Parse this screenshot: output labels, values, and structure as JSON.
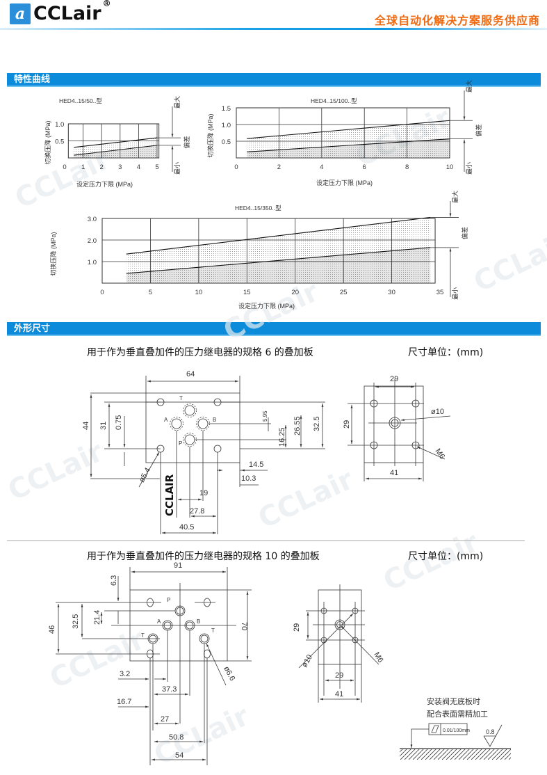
{
  "header": {
    "logo_text": "CCLair",
    "logo_mark": "a",
    "registered": "®",
    "slogan": "全球自动化解决方案服务供应商"
  },
  "watermark": "CCLair",
  "sections": {
    "curves": "特性曲线",
    "dimensions": "外形尺寸"
  },
  "colors": {
    "brand_blue": "#0b8bd9",
    "slogan_orange": "#ef6a10"
  },
  "chart_data": [
    {
      "type": "area",
      "title": "HED4..15/50..型",
      "xlabel": "设定压力下限 (MPa)",
      "ylabel": "切换压降 (MPa)",
      "xlim": [
        0,
        5
      ],
      "ylim": [
        0,
        1.0
      ],
      "box_x": [
        0.2,
        5.1
      ],
      "x_ticks": [
        "0",
        "1",
        "2",
        "3",
        "4",
        "5"
      ],
      "x_tick_values": [
        0,
        1,
        2,
        3,
        4,
        5
      ],
      "y_ticks": [
        "0.5",
        "1.0"
      ],
      "y_tick_values": [
        0.5,
        1.0
      ],
      "grid": true,
      "series": [
        {
          "name": "最大",
          "x": [
            0.5,
            5
          ],
          "y": [
            0.31,
            0.59
          ]
        },
        {
          "name": "最小",
          "x": [
            0.5,
            5
          ],
          "y": [
            0.08,
            0.37
          ]
        }
      ],
      "annotations": {
        "max": "最大",
        "deviation": "偏差",
        "min": "最小"
      }
    },
    {
      "type": "area",
      "title": "HED4..15/100..型",
      "xlabel": "设定压力下限 (MPa)",
      "ylabel": "切换压降 (MPa)",
      "xlim": [
        0,
        10
      ],
      "ylim": [
        0,
        1.5
      ],
      "box_x": [
        0,
        10
      ],
      "x_ticks": [
        "0",
        "2",
        "4",
        "6",
        "8",
        "10"
      ],
      "x_tick_values": [
        0,
        2,
        4,
        6,
        8,
        10
      ],
      "y_ticks": [
        "0.5",
        "1.0",
        "1.5"
      ],
      "y_tick_values": [
        0.5,
        1.0,
        1.5
      ],
      "grid": true,
      "series": [
        {
          "name": "最大",
          "x": [
            0.5,
            10
          ],
          "y": [
            0.58,
            1.12
          ]
        },
        {
          "name": "最小",
          "x": [
            0.5,
            10
          ],
          "y": [
            0.18,
            0.57
          ]
        }
      ],
      "annotations": {
        "max": "最大",
        "deviation": "偏差",
        "min": "最小"
      }
    },
    {
      "type": "area",
      "title": "HED4..15/350..型",
      "xlabel": "设定压力下限 (MPa)",
      "ylabel": "切换压降 (MPa)",
      "xlim": [
        0,
        35
      ],
      "ylim": [
        0,
        3.0
      ],
      "box_x": [
        0,
        34.5
      ],
      "x_ticks": [
        "0",
        "5",
        "10",
        "15",
        "20",
        "25",
        "30",
        "35"
      ],
      "x_tick_values": [
        0,
        5,
        10,
        15,
        20,
        25,
        30,
        35
      ],
      "y_ticks": [
        "1.0",
        "2.0",
        "3.0"
      ],
      "y_tick_values": [
        1.0,
        2.0,
        3.0
      ],
      "grid": true,
      "series": [
        {
          "name": "最大",
          "x": [
            2.5,
            34
          ],
          "y": [
            1.35,
            3.05
          ]
        },
        {
          "name": "最小",
          "x": [
            2.5,
            34
          ],
          "y": [
            0.45,
            1.65
          ]
        }
      ],
      "annotations": {
        "max": "最大",
        "deviation": "偏差",
        "min": "最小"
      }
    }
  ],
  "drawing6": {
    "caption": "用于作为垂直叠加件的压力继电器的规格 6 的叠加板",
    "unit": "尺寸单位：(mm)",
    "ports": {
      "T": "T",
      "A": "A",
      "B": "B",
      "P": "P"
    },
    "brand_mark": "CCLAIR",
    "dims": {
      "width": "64",
      "height": "44",
      "hole_pitch": "31",
      "d075": "0.75",
      "d595": "5.95",
      "d1625": "16.25",
      "d2655": "26.55",
      "d325": "32.5",
      "d145": "14.5",
      "d103": "10.3",
      "d19": "19",
      "d278": "27.8",
      "d405": "40.5",
      "hole_dia": "ø5.4"
    },
    "side": {
      "top": "29",
      "left": "29",
      "bore": "ø10",
      "thread": "M6",
      "width": "41"
    }
  },
  "drawing10": {
    "caption": "用于作为垂直叠加件的压力继电器的规格 10 的叠加板",
    "unit": "尺寸单位：(mm)",
    "ports": {
      "P": "P",
      "A": "A",
      "B": "B",
      "T1": "T",
      "T2": "T"
    },
    "dims": {
      "width": "91",
      "d63": "6.3",
      "d214": "21.4",
      "d325": "32.5",
      "d46": "46",
      "height": "70",
      "hole_dia": "ø6.6",
      "d32": "3.2",
      "d373": "37.3",
      "d167": "16.7",
      "d27": "27",
      "d508": "50.8",
      "d54": "54"
    },
    "side": {
      "left": "29",
      "bore": "ø10",
      "thread": "M6",
      "bottom": "29",
      "width": "41"
    },
    "note": {
      "line1": "安装阀无底板时",
      "line2": "配合表面需精加工",
      "flatness": "0.01/100mm",
      "roughness": "0.8"
    }
  }
}
